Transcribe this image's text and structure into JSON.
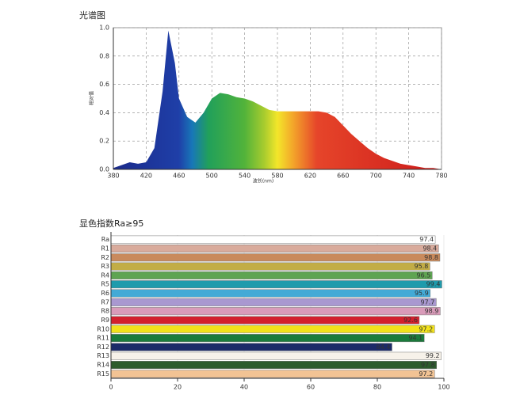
{
  "chart_data": [
    {
      "type": "area",
      "title": "光谱图",
      "xlabel": "波长(nm)",
      "ylabel": "相对值",
      "x": [
        380,
        390,
        400,
        410,
        420,
        430,
        440,
        447,
        455,
        460,
        470,
        480,
        490,
        500,
        510,
        520,
        530,
        540,
        550,
        560,
        570,
        580,
        590,
        600,
        610,
        620,
        630,
        640,
        650,
        660,
        670,
        680,
        690,
        700,
        710,
        720,
        730,
        740,
        750,
        760,
        770,
        780
      ],
      "values": [
        0.01,
        0.03,
        0.05,
        0.04,
        0.05,
        0.15,
        0.55,
        0.98,
        0.75,
        0.5,
        0.37,
        0.33,
        0.4,
        0.5,
        0.54,
        0.53,
        0.51,
        0.5,
        0.48,
        0.45,
        0.42,
        0.41,
        0.41,
        0.41,
        0.41,
        0.41,
        0.41,
        0.4,
        0.37,
        0.31,
        0.25,
        0.2,
        0.15,
        0.11,
        0.08,
        0.06,
        0.04,
        0.03,
        0.02,
        0.01,
        0.01,
        0.0
      ],
      "xlim": [
        380,
        780
      ],
      "xticks": [
        380,
        420,
        460,
        500,
        540,
        580,
        620,
        660,
        700,
        740,
        780
      ],
      "ylim": [
        0,
        1
      ],
      "yticks": [
        {
          "value": 0,
          "label": "0.0"
        },
        0.2,
        0.4,
        0.6,
        0.8,
        {
          "value": 1,
          "label": "1.0"
        }
      ],
      "grid": true
    },
    {
      "type": "hbar",
      "title": "显色指数Ra≥95",
      "categories": [
        "Ra",
        "R1",
        "R2",
        "R3",
        "R4",
        "R5",
        "R6",
        "R7",
        "R8",
        "R9",
        "R10",
        "R11",
        "R12",
        "R13",
        "R14",
        "R15"
      ],
      "values": [
        97.4,
        98.4,
        98.8,
        95.8,
        96.5,
        99.4,
        95.9,
        97.7,
        98.9,
        92.6,
        97.2,
        94.1,
        84.4,
        99.2,
        97.8,
        97.2
      ],
      "colors": [
        "#ffffff",
        "#d9ab9c",
        "#c98a5c",
        "#c2ad46",
        "#5ea452",
        "#1f9bac",
        "#43aad6",
        "#a998d0",
        "#d99bb9",
        "#d3202d",
        "#f2e21b",
        "#1b7c3c",
        "#1b2a68",
        "#f7f2ea",
        "#2c5c2d",
        "#f2c394"
      ],
      "xlim": [
        0,
        100
      ],
      "xticks": [
        0,
        20,
        40,
        60,
        80,
        100
      ]
    }
  ]
}
